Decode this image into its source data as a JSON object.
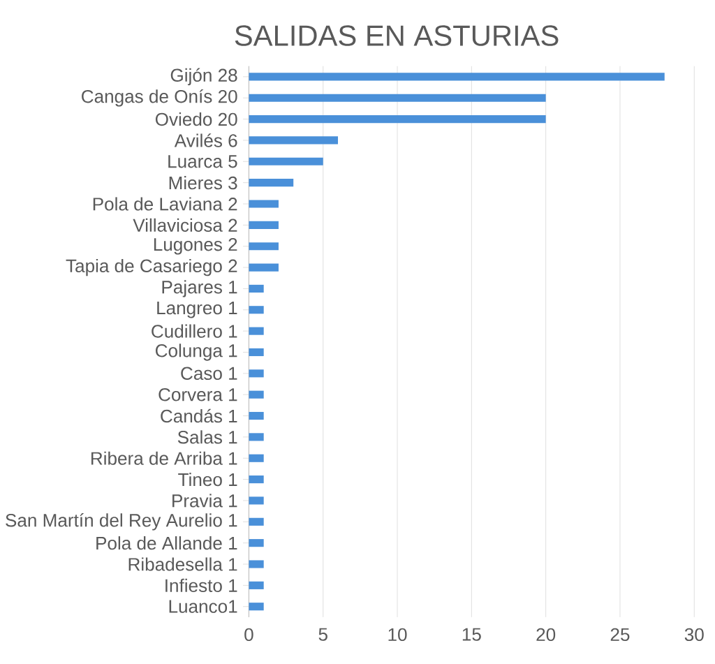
{
  "chart_data": {
    "type": "bar",
    "orientation": "horizontal",
    "title": "SALIDAS EN ASTURIAS",
    "categories": [
      "Gijón 28",
      "Cangas de Onís 20",
      "Oviedo 20",
      "Avilés 6",
      "Luarca 5",
      "Mieres 3",
      "Pola de Laviana 2",
      "Villaviciosa 2",
      "Lugones 2",
      "Tapia de Casariego 2",
      "Pajares 1",
      "Langreo 1",
      "Cudillero 1",
      "Colunga 1",
      "Caso 1",
      "Corvera 1",
      "Candás 1",
      "Salas 1",
      "Ribera de Arriba 1",
      "Tineo 1",
      "Pravia 1",
      "San Martín del Rey Aurelio 1",
      "Pola de Allande 1",
      "Ribadesella 1",
      "Infiesto 1",
      "Luanco1"
    ],
    "values": [
      28,
      20,
      20,
      6,
      5,
      3,
      2,
      2,
      2,
      2,
      1,
      1,
      1,
      1,
      1,
      1,
      1,
      1,
      1,
      1,
      1,
      1,
      1,
      1,
      1,
      1
    ],
    "color": "#4a90d9",
    "xlim": [
      0,
      30
    ],
    "xticks": [
      0,
      5,
      10,
      15,
      20,
      25,
      30
    ],
    "grid": "x"
  }
}
